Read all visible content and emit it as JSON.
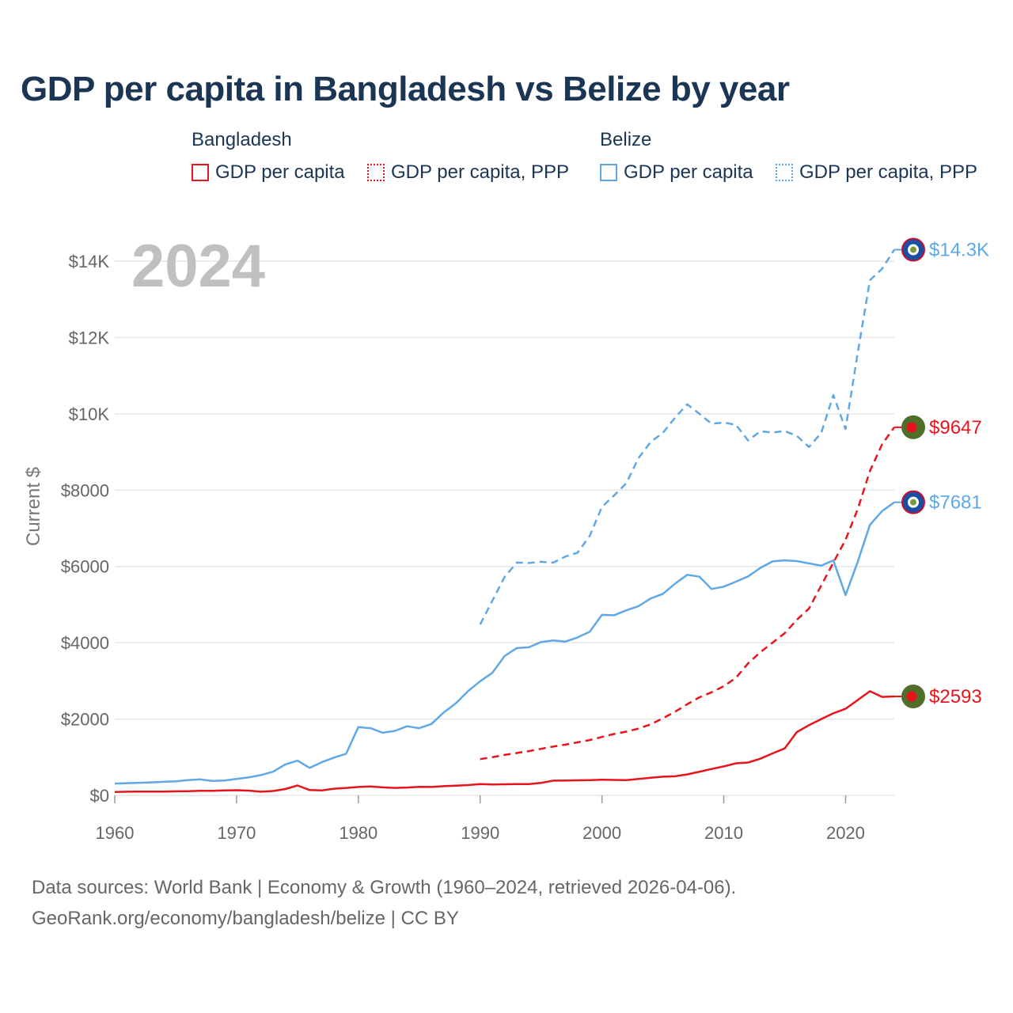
{
  "title": "GDP per capita in Bangladesh vs Belize by year",
  "legend": {
    "groups": [
      {
        "country": "Bangladesh",
        "color": "#e8141b",
        "items": [
          {
            "label": "GDP per capita",
            "style": "solid"
          },
          {
            "label": "GDP per capita, PPP",
            "style": "dotted"
          }
        ]
      },
      {
        "country": "Belize",
        "color": "#5fa8e8",
        "items": [
          {
            "label": "GDP per capita",
            "style": "solid"
          },
          {
            "label": "GDP per capita, PPP",
            "style": "dotted"
          }
        ]
      }
    ]
  },
  "chart_data": {
    "type": "line",
    "title": "GDP per capita in Bangladesh vs Belize by year",
    "xlabel": "",
    "ylabel": "Current $",
    "xlim": [
      1960,
      2024
    ],
    "ylim": [
      0,
      14600
    ],
    "x_ticks": [
      1960,
      1970,
      1980,
      1990,
      2000,
      2010,
      2020
    ],
    "y_ticks": [
      {
        "value": 0,
        "label": "$0"
      },
      {
        "value": 2000,
        "label": "$2000"
      },
      {
        "value": 4000,
        "label": "$4000"
      },
      {
        "value": 6000,
        "label": "$6000"
      },
      {
        "value": 8000,
        "label": "$8000"
      },
      {
        "value": 10000,
        "label": "$10K"
      },
      {
        "value": 12000,
        "label": "$12K"
      },
      {
        "value": 14000,
        "label": "$14K"
      }
    ],
    "year_label": "2024",
    "series": [
      {
        "name": "Bangladesh GDP per capita",
        "country": "Bangladesh",
        "color": "#e8141b",
        "dash": "solid",
        "end_label": "$2593",
        "end_value": 2593,
        "flag": "bangladesh",
        "x": [
          1960,
          1961,
          1962,
          1963,
          1964,
          1965,
          1966,
          1967,
          1968,
          1969,
          1970,
          1971,
          1972,
          1973,
          1974,
          1975,
          1976,
          1977,
          1978,
          1979,
          1980,
          1981,
          1982,
          1983,
          1984,
          1985,
          1986,
          1987,
          1988,
          1989,
          1990,
          1991,
          1992,
          1993,
          1994,
          1995,
          1996,
          1997,
          1998,
          1999,
          2000,
          2001,
          2002,
          2003,
          2004,
          2005,
          2006,
          2007,
          2008,
          2009,
          2010,
          2011,
          2012,
          2013,
          2014,
          2015,
          2016,
          2017,
          2018,
          2019,
          2020,
          2021,
          2022,
          2023,
          2024
        ],
        "values": [
          90,
          95,
          97,
          98,
          100,
          105,
          110,
          120,
          120,
          130,
          135,
          125,
          95,
          115,
          165,
          260,
          140,
          130,
          175,
          195,
          220,
          235,
          210,
          195,
          205,
          225,
          220,
          240,
          255,
          270,
          295,
          285,
          290,
          295,
          295,
          325,
          385,
          390,
          395,
          400,
          410,
          405,
          400,
          430,
          460,
          490,
          500,
          550,
          620,
          690,
          760,
          840,
          860,
          960,
          1100,
          1230,
          1660,
          1840,
          2000,
          2150,
          2270,
          2500,
          2730,
          2580,
          2593
        ]
      },
      {
        "name": "Bangladesh GDP per capita, PPP",
        "country": "Bangladesh",
        "color": "#e8141b",
        "dash": "dashed",
        "end_label": "$9647",
        "end_value": 9647,
        "flag": "bangladesh",
        "x": [
          1990,
          1991,
          1992,
          1993,
          1994,
          1995,
          1996,
          1997,
          1998,
          1999,
          2000,
          2001,
          2002,
          2003,
          2004,
          2005,
          2006,
          2007,
          2008,
          2009,
          2010,
          2011,
          2012,
          2013,
          2014,
          2015,
          2016,
          2017,
          2018,
          2019,
          2020,
          2021,
          2022,
          2023,
          2024
        ],
        "values": [
          950,
          1000,
          1060,
          1110,
          1160,
          1220,
          1280,
          1330,
          1390,
          1450,
          1530,
          1610,
          1670,
          1750,
          1860,
          2020,
          2190,
          2390,
          2570,
          2700,
          2860,
          3080,
          3460,
          3750,
          4000,
          4250,
          4600,
          4900,
          5500,
          6100,
          6700,
          7500,
          8500,
          9200,
          9647
        ]
      },
      {
        "name": "Belize GDP per capita",
        "country": "Belize",
        "color": "#5fa8e8",
        "dash": "solid",
        "end_label": "$7681",
        "end_value": 7681,
        "flag": "belize",
        "x": [
          1960,
          1961,
          1962,
          1963,
          1964,
          1965,
          1966,
          1967,
          1968,
          1969,
          1970,
          1971,
          1972,
          1973,
          1974,
          1975,
          1976,
          1977,
          1978,
          1979,
          1980,
          1981,
          1982,
          1983,
          1984,
          1985,
          1986,
          1987,
          1988,
          1989,
          1990,
          1991,
          1992,
          1993,
          1994,
          1995,
          1996,
          1997,
          1998,
          1999,
          2000,
          2001,
          2002,
          2003,
          2004,
          2005,
          2006,
          2007,
          2008,
          2009,
          2010,
          2011,
          2012,
          2013,
          2014,
          2015,
          2016,
          2017,
          2018,
          2019,
          2020,
          2021,
          2022,
          2023,
          2024
        ],
        "values": [
          310,
          320,
          330,
          340,
          355,
          370,
          400,
          420,
          380,
          390,
          430,
          470,
          530,
          620,
          810,
          910,
          720,
          870,
          990,
          1090,
          1790,
          1760,
          1640,
          1690,
          1810,
          1760,
          1870,
          2170,
          2410,
          2730,
          2990,
          3210,
          3650,
          3860,
          3880,
          4020,
          4060,
          4030,
          4140,
          4290,
          4730,
          4720,
          4850,
          4960,
          5160,
          5280,
          5550,
          5780,
          5730,
          5410,
          5470,
          5600,
          5740,
          5960,
          6130,
          6160,
          6140,
          6080,
          6020,
          6160,
          5250,
          6120,
          7090,
          7450,
          7681
        ]
      },
      {
        "name": "Belize GDP per capita, PPP",
        "country": "Belize",
        "color": "#5fa8e8",
        "dash": "dashed",
        "end_label": "$14.3K",
        "end_value": 14300,
        "flag": "belize",
        "x": [
          1990,
          1991,
          1992,
          1993,
          1994,
          1995,
          1996,
          1997,
          1998,
          1999,
          2000,
          2001,
          2002,
          2003,
          2004,
          2005,
          2006,
          2007,
          2008,
          2009,
          2010,
          2011,
          2012,
          2013,
          2014,
          2015,
          2016,
          2017,
          2018,
          2019,
          2020,
          2021,
          2022,
          2023,
          2024
        ],
        "values": [
          4480,
          5100,
          5720,
          6100,
          6090,
          6120,
          6100,
          6260,
          6360,
          6800,
          7560,
          7860,
          8180,
          8840,
          9260,
          9500,
          9900,
          10250,
          10000,
          9740,
          9770,
          9710,
          9300,
          9540,
          9510,
          9550,
          9420,
          9130,
          9500,
          10490,
          9600,
          11600,
          13500,
          13800,
          14300
        ]
      }
    ]
  },
  "footer": {
    "line1": "Data sources: World Bank | Economy & Growth (1960–2024, retrieved 2026-04-06).",
    "line2": "GeoRank.org/economy/bangladesh/belize | CC BY"
  }
}
